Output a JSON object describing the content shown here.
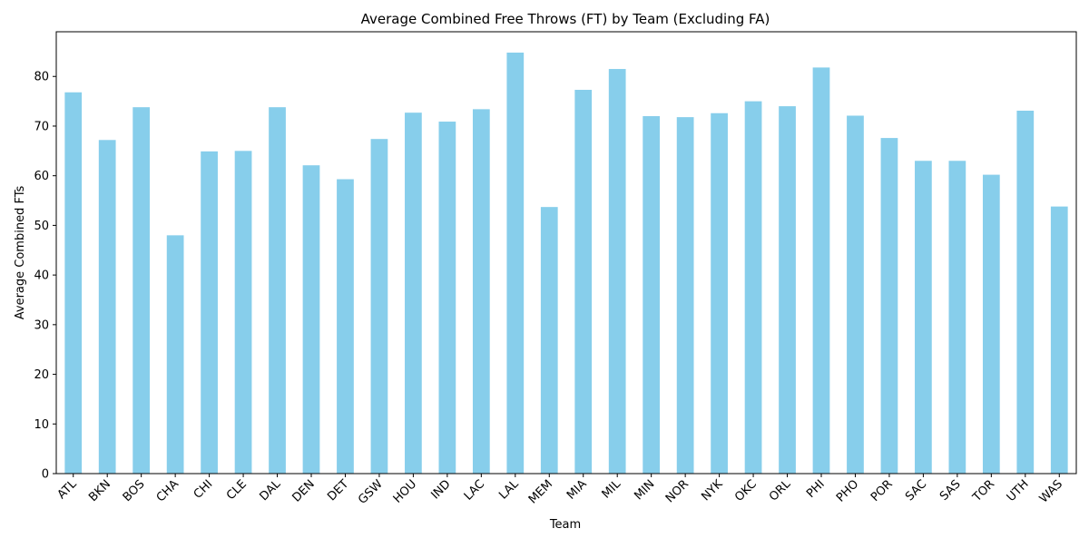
{
  "chart_data": {
    "type": "bar",
    "title": "Average Combined Free Throws (FT) by Team (Excluding FA)",
    "xlabel": "Team",
    "ylabel": "Average Combined FTs",
    "ylim": [
      0,
      89
    ],
    "yticks": [
      0,
      10,
      20,
      30,
      40,
      50,
      60,
      70,
      80
    ],
    "grid": false,
    "legend": "none",
    "bar_color": "#87ceeb",
    "categories": [
      "ATL",
      "BKN",
      "BOS",
      "CHA",
      "CHI",
      "CLE",
      "DAL",
      "DEN",
      "DET",
      "GSW",
      "HOU",
      "IND",
      "LAC",
      "LAL",
      "MEM",
      "MIA",
      "MIL",
      "MIN",
      "NOR",
      "NYK",
      "OKC",
      "ORL",
      "PHI",
      "PHO",
      "POR",
      "SAC",
      "SAS",
      "TOR",
      "UTH",
      "WAS"
    ],
    "values": [
      76.8,
      67.2,
      73.8,
      48.0,
      64.9,
      65.0,
      73.8,
      62.1,
      59.3,
      67.4,
      72.7,
      70.9,
      73.4,
      84.8,
      53.7,
      77.3,
      81.5,
      72.0,
      71.8,
      72.6,
      75.0,
      74.0,
      81.8,
      72.1,
      67.6,
      63.0,
      63.0,
      60.2,
      73.1,
      53.8
    ]
  }
}
